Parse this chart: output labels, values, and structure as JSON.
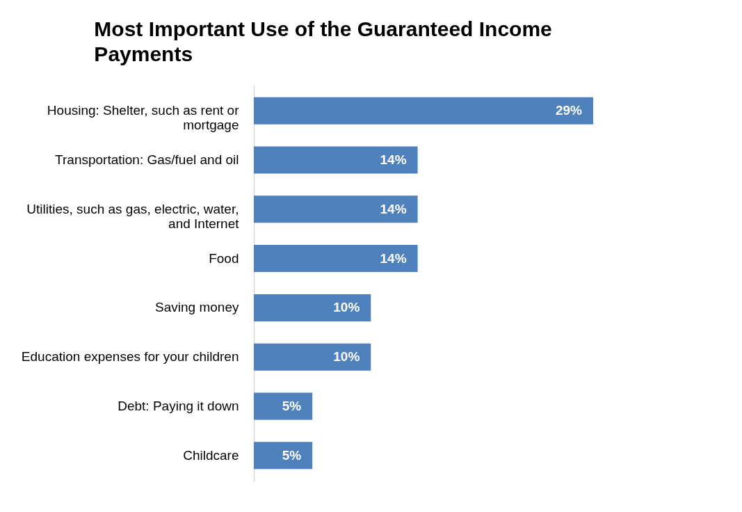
{
  "chart_data": {
    "type": "bar",
    "orientation": "horizontal",
    "title": "Most Important Use of the Guaranteed Income Payments",
    "categories": [
      "Housing: Shelter, such as rent or mortgage",
      "Transportation: Gas/fuel and oil",
      "Utilities, such as gas, electric, water, and Internet",
      "Food",
      "Saving money",
      "Education expenses for your children",
      "Debt: Paying it down",
      "Childcare"
    ],
    "values": [
      29,
      14,
      14,
      14,
      10,
      10,
      5,
      5
    ],
    "value_labels": [
      "29%",
      "14%",
      "14%",
      "14%",
      "10%",
      "10%",
      "5%",
      "5%"
    ],
    "color": "#4f81bd"
  }
}
